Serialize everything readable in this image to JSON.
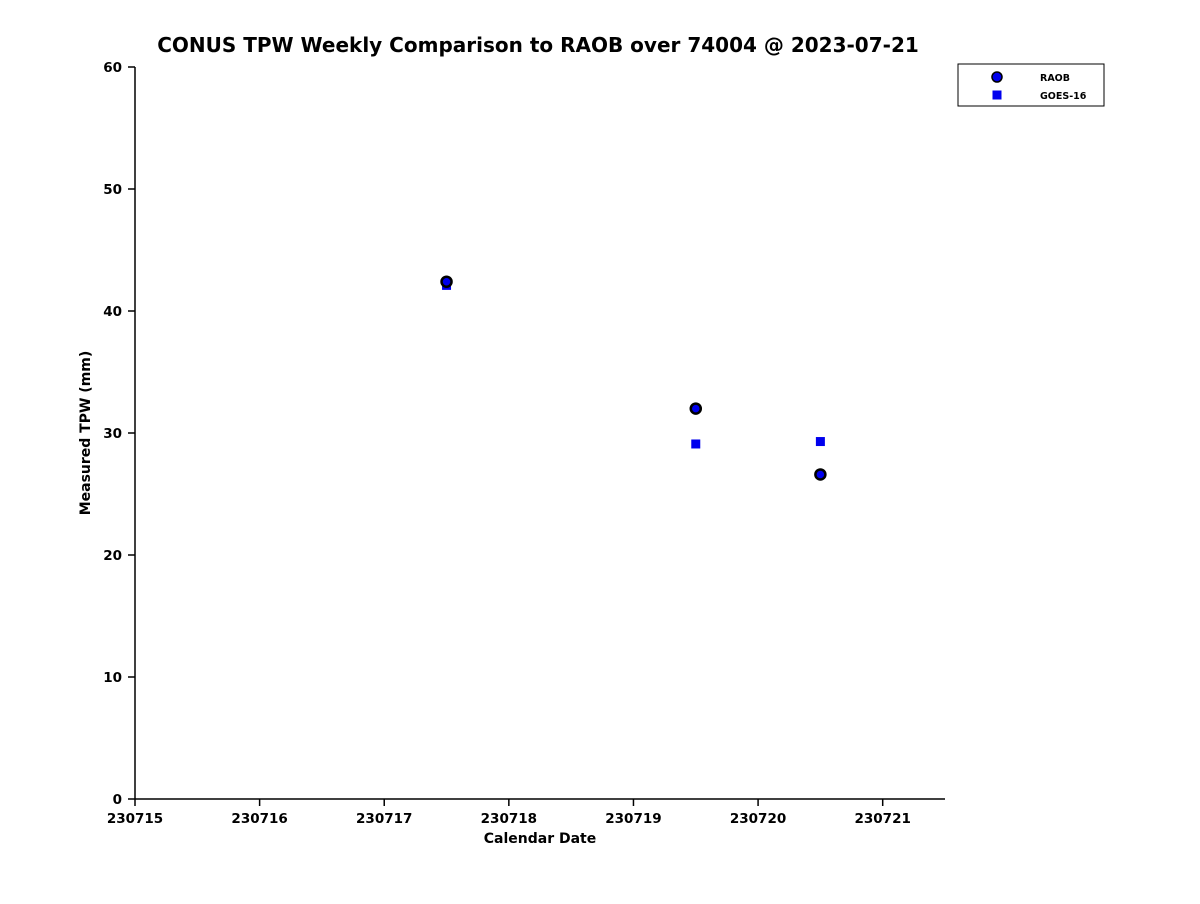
{
  "chart_data": {
    "type": "scatter",
    "title": "CONUS TPW Weekly Comparison to RAOB over 74004 @ 2023-07-21",
    "xlabel": "Calendar Date",
    "ylabel": "Measured TPW (mm)",
    "xlim": [
      230715,
      230721.5
    ],
    "ylim": [
      0,
      60
    ],
    "xticks": [
      230715,
      230716,
      230717,
      230718,
      230719,
      230720,
      230721
    ],
    "yticks": [
      0,
      10,
      20,
      30,
      40,
      50,
      60
    ],
    "grid": false,
    "legend_position": "top-right",
    "axis_color": "#000000",
    "series": [
      {
        "name": "RAOB",
        "marker": "circle",
        "color": "#0000ee",
        "edge_color": "#000000",
        "x": [
          230717.5,
          230719.5,
          230720.5
        ],
        "y": [
          42.4,
          32.0,
          26.6
        ]
      },
      {
        "name": "GOES-16",
        "marker": "square",
        "color": "#0000ee",
        "edge_color": "#0000ee",
        "x": [
          230717.5,
          230719.5,
          230720.5
        ],
        "y": [
          42.1,
          29.1,
          29.3
        ]
      }
    ]
  }
}
